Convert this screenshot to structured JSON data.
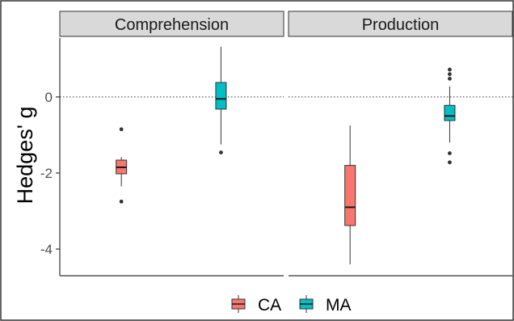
{
  "chart_data": {
    "type": "boxplot",
    "title": "",
    "ylabel": "Hedges' g",
    "xlabel": "",
    "ylim": [
      -4.7,
      1.55
    ],
    "yticks": [
      -4,
      -2,
      0
    ],
    "reference_line": 0,
    "panels": [
      "Comprehension",
      "Production"
    ],
    "legend": {
      "position": "bottom",
      "entries": [
        {
          "name": "CA",
          "color": "#F8766D"
        },
        {
          "name": "MA",
          "color": "#00BFC4"
        }
      ]
    },
    "boxes": [
      {
        "panel": "Comprehension",
        "group": "CA",
        "whisker_low": -2.35,
        "q1": -2.02,
        "median": -1.85,
        "q3": -1.66,
        "whisker_high": -1.58,
        "outliers": [
          -0.85,
          -2.75
        ]
      },
      {
        "panel": "Comprehension",
        "group": "MA",
        "whisker_low": -1.25,
        "q1": -0.32,
        "median": -0.05,
        "q3": 0.38,
        "whisker_high": 1.32,
        "outliers": [
          -1.46
        ]
      },
      {
        "panel": "Production",
        "group": "CA",
        "whisker_low": -4.4,
        "q1": -3.38,
        "median": -2.9,
        "q3": -1.8,
        "whisker_high": -0.75,
        "outliers": []
      },
      {
        "panel": "Production",
        "group": "MA",
        "whisker_low": -1.2,
        "q1": -0.62,
        "median": -0.5,
        "q3": -0.22,
        "whisker_high": 0.28,
        "outliers": [
          0.72,
          0.6,
          0.48,
          -1.48,
          -1.72
        ]
      }
    ]
  }
}
